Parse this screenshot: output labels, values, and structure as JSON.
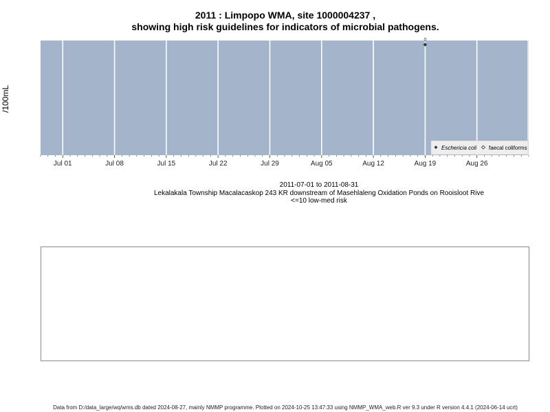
{
  "title_line1": "2011 : Limpopo WMA, site 1000004237 ,",
  "title_line2": "showing high risk guidelines for indicators of microbial pathogens.",
  "y_axis_label": "/100mL",
  "subtitle": {
    "date_range": "2011-07-01 to 2011-08-31",
    "site_description": "Lekalakala Township Macalacaskop 243 KR downstream of Masehlaleng Oxidation Ponds on Rooisloot Rive",
    "risk_note": "<=10 low-med risk"
  },
  "footer": "Data from D:/data_large/wq/wms.db dated 2024-08-27, mainly NMMP programme. Plotted on 2024-10-25 13:47:33 using NMMP_WMA_web.R ver 9.3 under R version 4.4.1 (2024-06-14 ucrt)",
  "colors": {
    "panel_background": "#a3b4cb",
    "grid": "#ffffff",
    "point": "#333333"
  },
  "chart_data": {
    "type": "scatter",
    "x_axis": {
      "type": "date",
      "range": [
        "2011-06-28",
        "2011-09-02"
      ],
      "ticks": [
        {
          "date": "2011-07-01",
          "label": "Jul 01"
        },
        {
          "date": "2011-07-08",
          "label": "Jul 08"
        },
        {
          "date": "2011-07-15",
          "label": "Jul 15"
        },
        {
          "date": "2011-07-22",
          "label": "Jul 22"
        },
        {
          "date": "2011-07-29",
          "label": "Jul 29"
        },
        {
          "date": "2011-08-05",
          "label": "Aug 05"
        },
        {
          "date": "2011-08-12",
          "label": "Aug 12"
        },
        {
          "date": "2011-08-19",
          "label": "Aug 19"
        },
        {
          "date": "2011-08-26",
          "label": "Aug 26"
        }
      ]
    },
    "y_axis": {
      "label": "/100mL"
    },
    "series": [
      {
        "name": "Eschericia coli",
        "marker": "filled-diamond",
        "points": [
          {
            "x": "2011-08-19",
            "y": 0,
            "label": "0"
          }
        ]
      },
      {
        "name": "faecal coliforms",
        "marker": "open-diamond",
        "points": []
      }
    ],
    "legend_position": "bottom-right",
    "grid": true
  }
}
